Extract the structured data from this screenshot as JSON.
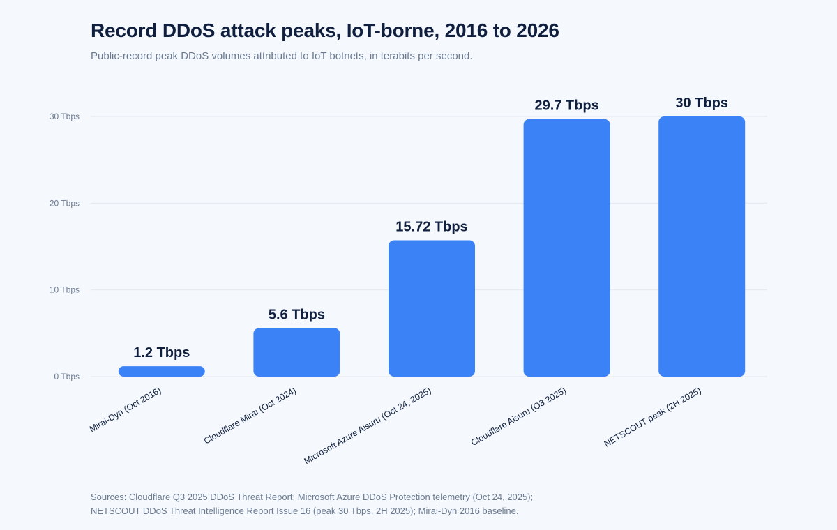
{
  "header": {
    "title": "Record DDoS attack peaks, IoT-borne, 2016 to 2026",
    "subtitle": "Public-record peak DDoS volumes attributed to IoT botnets, in terabits per second."
  },
  "footer": {
    "sources_line1": "Sources: Cloudflare Q3 2025 DDoS Threat Report; Microsoft Azure DDoS Protection telemetry (Oct 24, 2025);",
    "sources_line2": "NETSCOUT DDoS Threat Intelligence Report Issue 16 (peak 30 Tbps, 2H 2025); Mirai-Dyn 2016 baseline."
  },
  "colors": {
    "bar": "#3b82f6",
    "grid": "#e3e8ef",
    "label": "#0f1f3d",
    "tick": "#6b7a90"
  },
  "chart_data": {
    "type": "bar",
    "title": "Record DDoS attack peaks, IoT-borne, 2016 to 2026",
    "subtitle": "Public-record peak DDoS volumes attributed to IoT botnets, in terabits per second.",
    "xlabel": "",
    "ylabel": "",
    "unit": "Tbps",
    "categories": [
      "Mirai-Dyn (Oct 2016)",
      "Cloudflare Mirai (Oct 2024)",
      "Microsoft Azure Aisuru (Oct 24, 2025)",
      "Cloudflare Aisuru (Q3 2025)",
      "NETSCOUT peak (2H 2025)"
    ],
    "values": [
      1.2,
      5.6,
      15.72,
      29.7,
      30
    ],
    "data_labels": [
      "1.2 Tbps",
      "5.6 Tbps",
      "15.72 Tbps",
      "29.7 Tbps",
      "30 Tbps"
    ],
    "ylim": [
      0,
      30
    ],
    "yticks": [
      0,
      10,
      20,
      30
    ],
    "ytick_labels": [
      "0 Tbps",
      "10 Tbps",
      "20 Tbps",
      "30 Tbps"
    ],
    "grid": true,
    "legend": "none"
  }
}
